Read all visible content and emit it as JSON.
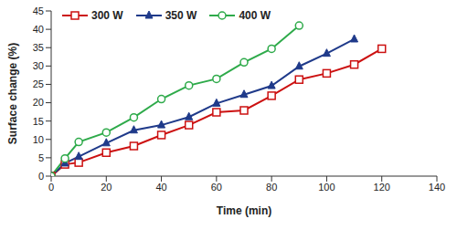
{
  "chart_data": {
    "type": "line",
    "x_label": "Time (min)",
    "y_label": "Surface change (%)",
    "x": [
      0,
      5,
      10,
      20,
      30,
      40,
      50,
      60,
      70,
      80,
      90,
      100,
      110,
      120
    ],
    "series": [
      {
        "name": "300 W",
        "color": "#cc1111",
        "marker": "square",
        "values": [
          0,
          3.2,
          3.7,
          6.4,
          8.2,
          11.2,
          13.9,
          17.4,
          17.9,
          21.9,
          26.3,
          28,
          30.4,
          34.7
        ]
      },
      {
        "name": "350 W",
        "color": "#1f3a8a",
        "marker": "triangle",
        "values": [
          0,
          3.5,
          5.3,
          9,
          12.5,
          13.9,
          16.1,
          19.8,
          22.2,
          24.6,
          29.9,
          33.4,
          37.3,
          null
        ]
      },
      {
        "name": "400 W",
        "color": "#2eaa4a",
        "marker": "circle",
        "values": [
          0,
          4.8,
          9.3,
          11.9,
          16,
          21,
          24.7,
          26.5,
          31,
          34.7,
          41,
          null,
          null,
          null
        ]
      }
    ],
    "xlim": [
      0,
      140
    ],
    "xticks": [
      0,
      20,
      40,
      60,
      80,
      100,
      120,
      140
    ],
    "ylim": [
      0,
      45
    ],
    "yticks": [
      0,
      5,
      10,
      15,
      20,
      25,
      30,
      35,
      40,
      45
    ],
    "grid": false,
    "legend": "top-left"
  }
}
